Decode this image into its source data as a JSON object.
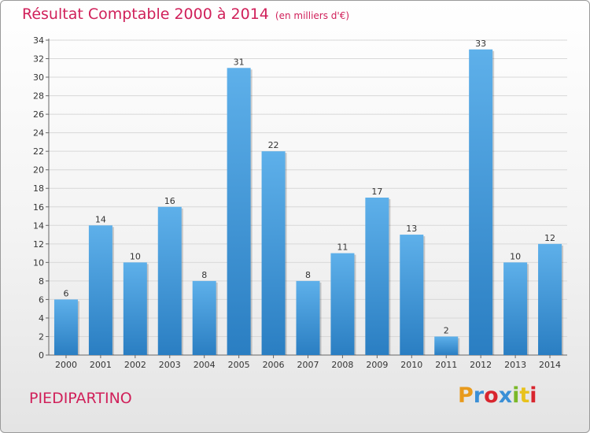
{
  "header": {
    "title": "Résultat Comptable 2000 à 2014",
    "unit": "(en milliers d'€)"
  },
  "footer": {
    "commune": "PIEDIPARTINO",
    "logo_text": "Proxiti",
    "logo_colors": [
      "#e89a1c",
      "#3a8fd6",
      "#d8252e",
      "#3a8fd6",
      "#7ab828",
      "#e8c21c",
      "#d8252e"
    ]
  },
  "colors": {
    "accent": "#d0205a",
    "bar_top": "#5eb0ea",
    "bar_bottom": "#2a7ec2",
    "grid": "#d8d8d8"
  },
  "chart_data": {
    "type": "bar",
    "title": "Résultat Comptable 2000 à 2014",
    "subtitle": "(en milliers d'€)",
    "xlabel": "",
    "ylabel": "",
    "categories": [
      "2000",
      "2001",
      "2002",
      "2003",
      "2004",
      "2005",
      "2006",
      "2007",
      "2008",
      "2009",
      "2010",
      "2011",
      "2012",
      "2013",
      "2014"
    ],
    "values": [
      6,
      14,
      10,
      16,
      8,
      31,
      22,
      8,
      11,
      17,
      13,
      2,
      33,
      10,
      12
    ],
    "ylim": [
      0,
      34
    ],
    "yticks": [
      0,
      2,
      4,
      6,
      8,
      10,
      12,
      14,
      16,
      18,
      20,
      22,
      24,
      26,
      28,
      30,
      32,
      34
    ],
    "grid": true,
    "legend": "none"
  }
}
